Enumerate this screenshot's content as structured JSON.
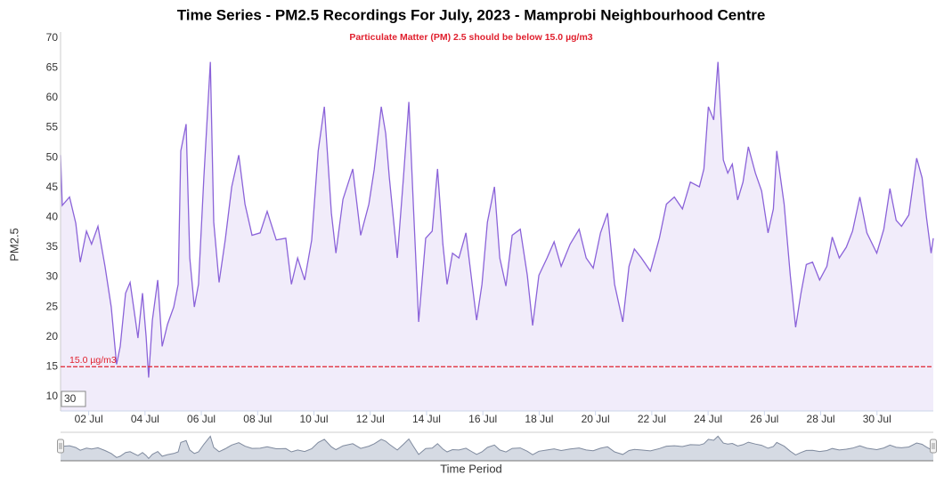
{
  "chart_data": {
    "type": "area",
    "title": "Time Series - PM2.5 Recordings For July, 2023 - Mamprobi Neighbourhood Centre",
    "subtitle": "Particulate Matter (PM) 2.5 should be below 15.0 µg/m3",
    "x_label": "Time Period",
    "y_label": "PM2.5",
    "range_input": "30",
    "color": "#8b63d9",
    "fill": "#f1ecfa",
    "grid": false,
    "x": [
      1.0,
      1.06,
      1.32,
      1.54,
      1.7,
      1.92,
      2.1,
      2.33,
      2.58,
      2.8,
      2.99,
      3.12,
      3.31,
      3.47,
      3.66,
      3.75,
      3.91,
      4.04,
      4.13,
      4.26,
      4.45,
      4.61,
      4.8,
      5.02,
      5.18,
      5.27,
      5.46,
      5.59,
      5.75,
      5.9,
      6.09,
      6.32,
      6.44,
      6.63,
      6.85,
      7.08,
      7.33,
      7.55,
      7.8,
      8.09,
      8.34,
      8.66,
      9.0,
      9.2,
      9.42,
      9.67,
      9.92,
      10.15,
      10.37,
      10.62,
      10.78,
      11.03,
      11.38,
      11.66,
      11.95,
      12.14,
      12.39,
      12.55,
      12.68,
      12.96,
      13.18,
      13.37,
      13.53,
      13.72,
      13.97,
      14.2,
      14.39,
      14.58,
      14.73,
      14.92,
      15.15,
      15.4,
      15.62,
      15.78,
      15.97,
      16.16,
      16.41,
      16.6,
      16.82,
      17.04,
      17.33,
      17.58,
      17.77,
      17.99,
      18.28,
      18.53,
      18.78,
      19.1,
      19.42,
      19.67,
      19.92,
      20.18,
      20.43,
      20.68,
      20.97,
      21.19,
      21.38,
      21.63,
      21.95,
      22.27,
      22.52,
      22.8,
      23.09,
      23.37,
      23.69,
      23.85,
      24.01,
      24.2,
      24.35,
      24.54,
      24.7,
      24.86,
      25.05,
      25.24,
      25.43,
      25.68,
      25.9,
      26.13,
      26.32,
      26.44,
      26.7,
      26.92,
      27.11,
      27.3,
      27.49,
      27.71,
      27.96,
      28.22,
      28.41,
      28.66,
      28.91,
      29.13,
      29.39,
      29.64,
      29.99,
      30.24,
      30.46,
      30.68,
      30.87,
      31.13,
      31.41,
      31.6,
      31.76,
      31.92,
      32.0
    ],
    "values": [
      50.4,
      42,
      43.4,
      39,
      32.5,
      37.7,
      35.5,
      38.5,
      31.8,
      25,
      15.4,
      18.4,
      27.3,
      29.1,
      22.8,
      19.8,
      27.3,
      20,
      13.2,
      22.8,
      29.5,
      18.4,
      22.1,
      25,
      28.8,
      51.1,
      55.6,
      33.2,
      25,
      28.8,
      46.6,
      66,
      39.2,
      29.1,
      36.2,
      45.1,
      50.4,
      42.2,
      37,
      37.4,
      41,
      36.2,
      36.5,
      28.8,
      33.2,
      29.5,
      36.2,
      51.1,
      58.5,
      40.7,
      34,
      43,
      48.1,
      37,
      42.2,
      48,
      58.5,
      54,
      46.6,
      33.2,
      46.6,
      59.3,
      42.2,
      22.5,
      36.5,
      37.7,
      48.1,
      35.5,
      28.8,
      34,
      33.2,
      37.4,
      28.8,
      22.8,
      28.8,
      39.2,
      45.1,
      33.2,
      28.5,
      37,
      38,
      30.3,
      21.9,
      30.3,
      33.2,
      35.9,
      31.8,
      35.5,
      38,
      33.2,
      31.5,
      37.4,
      40.7,
      28.8,
      22.5,
      31.8,
      34.7,
      33.2,
      31,
      36.5,
      42.2,
      43.4,
      41.4,
      45.9,
      45.1,
      48.1,
      58.5,
      56.3,
      66,
      49.6,
      47.4,
      48.9,
      42.9,
      45.9,
      51.8,
      47.4,
      44.4,
      37.4,
      41.4,
      51.1,
      42.2,
      30.3,
      21.6,
      27.3,
      32.1,
      32.5,
      29.5,
      31.8,
      36.7,
      33.2,
      35,
      37.7,
      43.4,
      37.4,
      34,
      38,
      44.8,
      39.5,
      38.5,
      40.4,
      49.9,
      46.6,
      39.9,
      34,
      36.5
    ],
    "xlim": [
      1,
      32
    ],
    "xticks": [
      {
        "value": 2,
        "label": "02 Jul"
      },
      {
        "value": 4,
        "label": "04 Jul"
      },
      {
        "value": 6,
        "label": "06 Jul"
      },
      {
        "value": 8,
        "label": "08 Jul"
      },
      {
        "value": 10,
        "label": "10 Jul"
      },
      {
        "value": 12,
        "label": "12 Jul"
      },
      {
        "value": 14,
        "label": "14 Jul"
      },
      {
        "value": 16,
        "label": "16 Jul"
      },
      {
        "value": 18,
        "label": "18 Jul"
      },
      {
        "value": 20,
        "label": "20 Jul"
      },
      {
        "value": 22,
        "label": "22 Jul"
      },
      {
        "value": 24,
        "label": "24 Jul"
      },
      {
        "value": 26,
        "label": "26 Jul"
      },
      {
        "value": 28,
        "label": "28 Jul"
      },
      {
        "value": 30,
        "label": "30 Jul"
      }
    ],
    "ylim": [
      7.6,
      71
    ],
    "yticks": [
      10,
      15,
      20,
      25,
      30,
      35,
      40,
      45,
      50,
      55,
      60,
      65,
      70
    ],
    "threshold": {
      "value": 15,
      "label": "15.0 µg/m3",
      "color": "#e0202e"
    }
  }
}
